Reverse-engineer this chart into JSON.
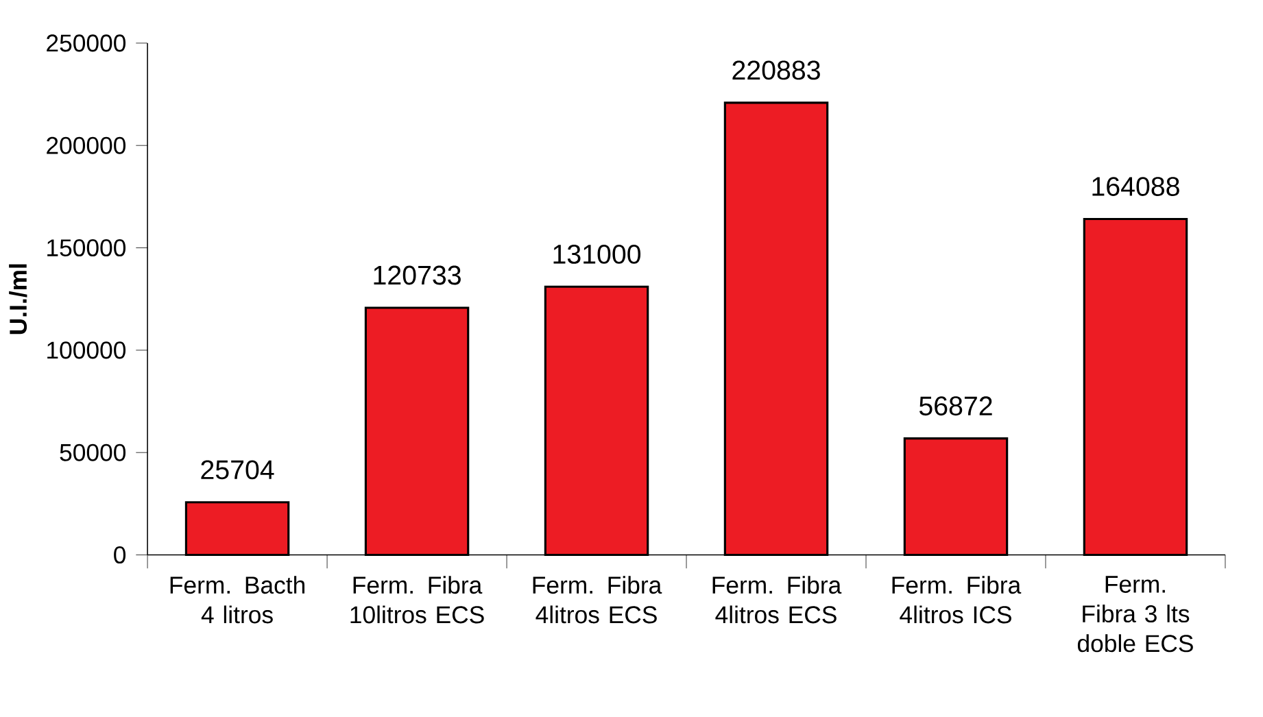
{
  "chart_data": {
    "type": "bar",
    "ylabel": "U.I./ml",
    "categories": [
      "Ferm. Bacth 4 litros",
      "Ferm. Fibra 10litros ECS",
      "Ferm. Fibra 4litros ECS",
      "Ferm. Fibra 4litros ECS",
      "Ferm. Fibra 4litros ICS",
      "Ferm. Fibra 3 lts doble ECS"
    ],
    "values": [
      25704,
      120733,
      131000,
      220883,
      56872,
      164088
    ],
    "color": "#ed1c24",
    "ylim": [
      0,
      250000
    ],
    "yticks": [
      0,
      50000,
      100000,
      150000,
      200000,
      250000
    ],
    "data_labels": true
  }
}
